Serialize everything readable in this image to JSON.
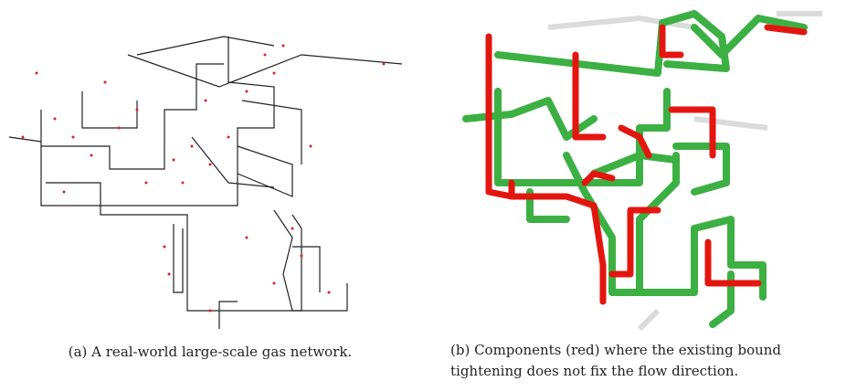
{
  "figure": {
    "subfigures": [
      {
        "caption": "(a) A real-world large-scale gas network."
      },
      {
        "caption": "(b) Components (red) where the existing bound tightening does not fix the flow direction."
      }
    ]
  }
}
